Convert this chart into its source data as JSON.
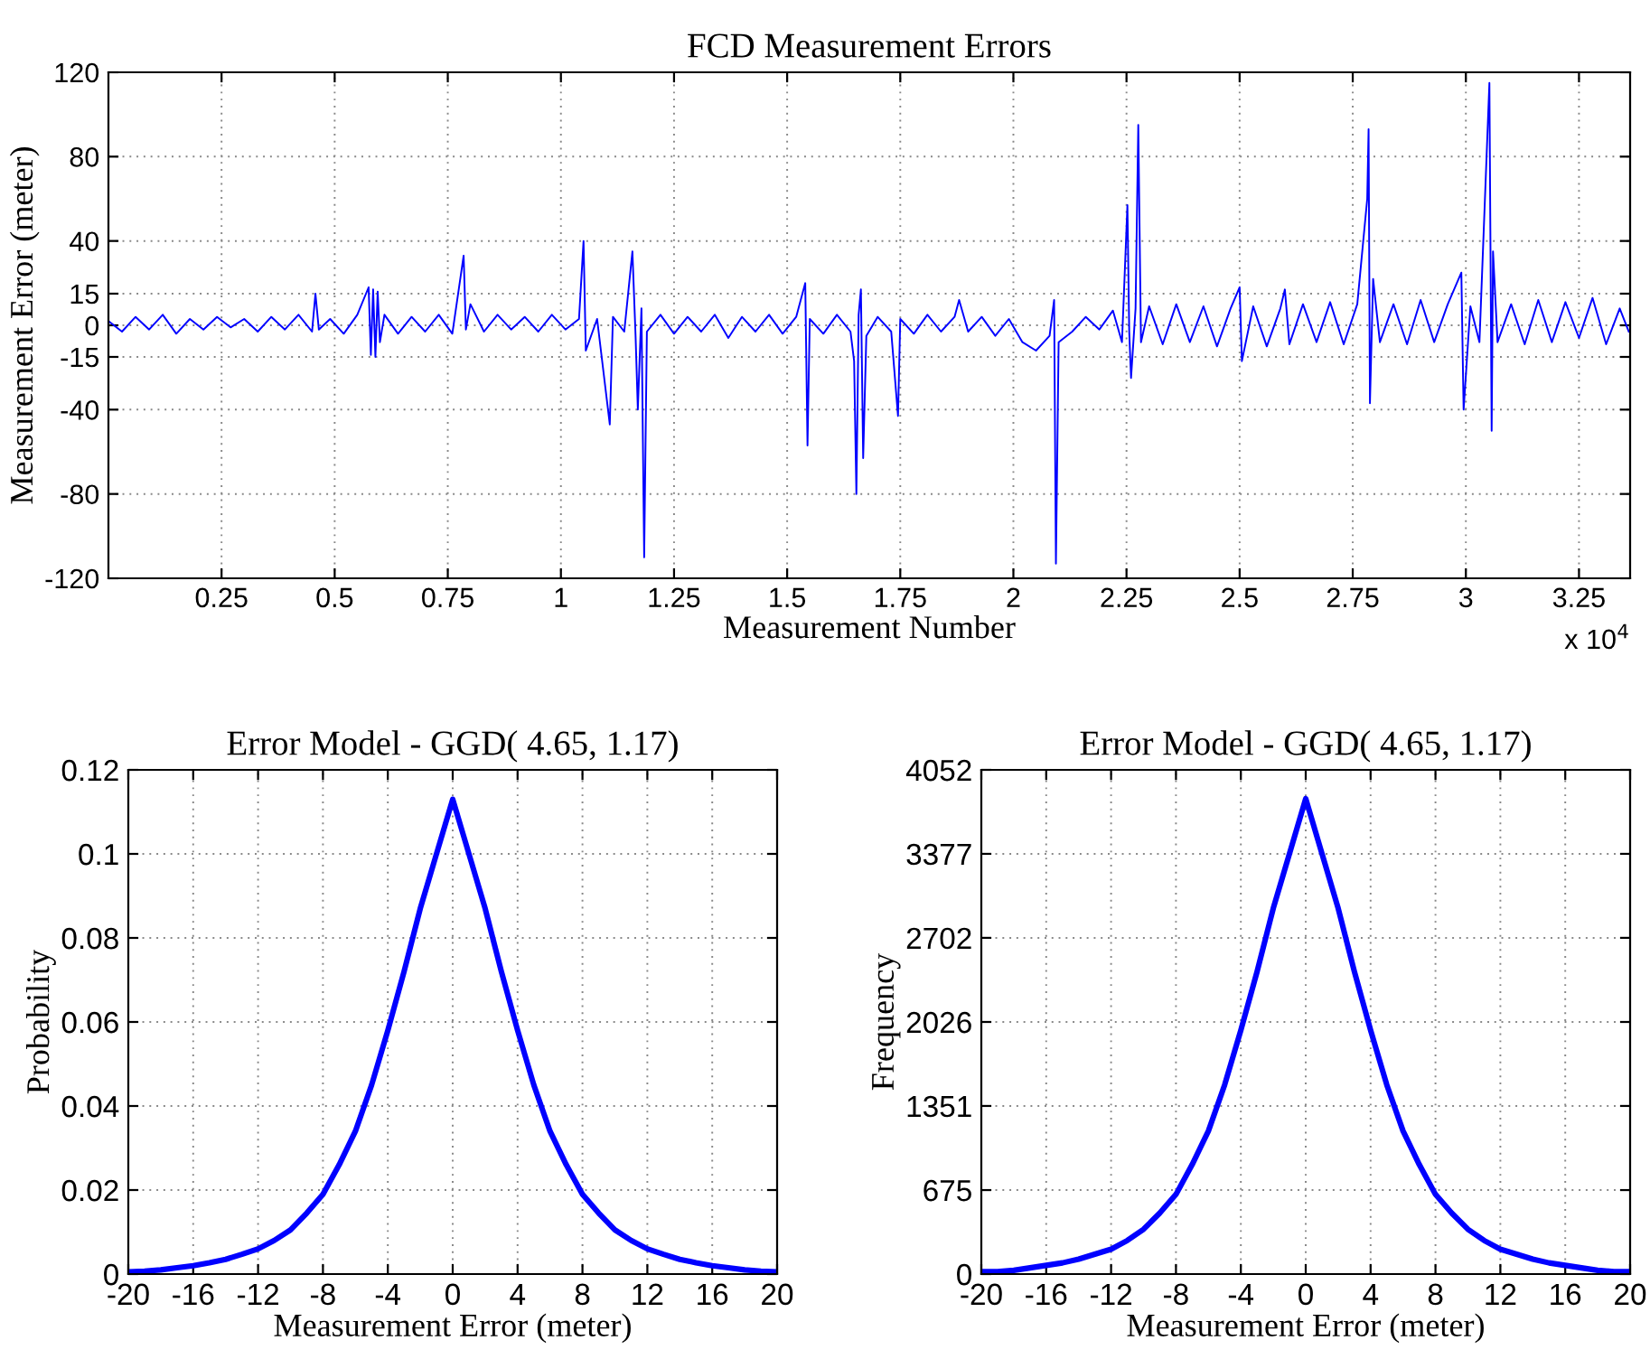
{
  "chart_data": [
    {
      "type": "line",
      "title": "FCD Measurement Errors",
      "xlabel": "Measurement Number",
      "ylabel": "Measurement Error (meter)",
      "annotations": [
        "x 10$^{4}$"
      ],
      "grid": true,
      "marker": "none",
      "line_style": "solid",
      "xlim": [
        0,
        3.363
      ],
      "xticks": [
        0.25,
        0.5,
        0.75,
        1,
        1.25,
        1.5,
        1.75,
        2,
        2.25,
        2.5,
        2.75,
        3,
        3.25
      ],
      "ylim": [
        -120,
        120
      ],
      "yticks": [
        -120,
        -80,
        -40,
        -15,
        0,
        15,
        40,
        80,
        120
      ],
      "series": [
        {
          "color": "#0000ff",
          "x": [
            0,
            0.03,
            0.06,
            0.09,
            0.12,
            0.15,
            0.18,
            0.21,
            0.24,
            0.27,
            0.3,
            0.33,
            0.36,
            0.39,
            0.42,
            0.45,
            0.4575,
            0.465,
            0.49,
            0.52,
            0.55,
            0.575,
            0.58,
            0.585,
            0.59,
            0.595,
            0.6,
            0.61,
            0.64,
            0.67,
            0.7,
            0.73,
            0.76,
            0.785,
            0.79,
            0.8,
            0.83,
            0.86,
            0.89,
            0.92,
            0.95,
            0.98,
            1.01,
            1.04,
            1.05,
            1.055,
            1.08,
            1.108,
            1.115,
            1.14,
            1.158,
            1.165,
            1.17,
            1.178,
            1.184,
            1.19,
            1.22,
            1.25,
            1.28,
            1.31,
            1.34,
            1.37,
            1.4,
            1.43,
            1.46,
            1.49,
            1.52,
            1.54,
            1.545,
            1.55,
            1.58,
            1.61,
            1.64,
            1.648,
            1.653,
            1.658,
            1.663,
            1.668,
            1.675,
            1.7,
            1.73,
            1.745,
            1.75,
            1.78,
            1.81,
            1.84,
            1.87,
            1.88,
            1.9,
            1.93,
            1.96,
            1.99,
            2.02,
            2.05,
            2.08,
            2.09,
            2.094,
            2.1,
            2.13,
            2.16,
            2.19,
            2.22,
            2.24,
            2.252,
            2.256,
            2.26,
            2.27,
            2.276,
            2.282,
            2.3,
            2.33,
            2.36,
            2.39,
            2.42,
            2.45,
            2.48,
            2.5,
            2.505,
            2.53,
            2.56,
            2.59,
            2.6,
            2.61,
            2.64,
            2.67,
            2.7,
            2.73,
            2.76,
            2.782,
            2.785,
            2.788,
            2.795,
            2.81,
            2.84,
            2.87,
            2.9,
            2.93,
            2.96,
            2.99,
            2.995,
            3.01,
            3.03,
            3.052,
            3.057,
            3.06,
            3.07,
            3.1,
            3.13,
            3.16,
            3.19,
            3.22,
            3.25,
            3.28,
            3.31,
            3.34,
            3.36
          ],
          "values": [
            2,
            -3,
            4,
            -2,
            5,
            -4,
            3,
            -2,
            4,
            -1,
            3,
            -3,
            4,
            -2,
            5,
            -3,
            15,
            -2,
            3,
            -4,
            5,
            18,
            -14,
            17,
            -15,
            16,
            -8,
            5,
            -4,
            4,
            -3,
            5,
            -4,
            33,
            -2,
            10,
            -3,
            5,
            -2,
            4,
            -3,
            5,
            -2,
            3,
            40,
            -12,
            3,
            -47,
            4,
            -3,
            35,
            -5,
            -40,
            8,
            -110,
            -3,
            5,
            -4,
            4,
            -3,
            5,
            -6,
            4,
            -3,
            5,
            -4,
            4,
            20,
            -57,
            3,
            -4,
            5,
            -3,
            -17,
            -80,
            5,
            17,
            -63,
            -5,
            4,
            -3,
            -43,
            3,
            -4,
            5,
            -3,
            4,
            12,
            -3,
            4,
            -5,
            3,
            -8,
            -12,
            -5,
            12,
            -113,
            -8,
            -3,
            4,
            -2,
            7,
            -8,
            57,
            -3,
            -25,
            8,
            95,
            -8,
            9,
            -9,
            10,
            -8,
            9,
            -10,
            8,
            18,
            -17,
            9,
            -10,
            8,
            17,
            -9,
            10,
            -8,
            11,
            -9,
            10,
            60,
            93,
            -37,
            22,
            -8,
            10,
            -9,
            12,
            -8,
            10,
            25,
            -40,
            9,
            -8,
            115,
            -50,
            35,
            -8,
            10,
            -9,
            12,
            -8,
            11,
            -6,
            13,
            -9,
            8,
            -3
          ]
        }
      ]
    },
    {
      "type": "line",
      "title": "Error Model - GGD( 4.65, 1.17)",
      "xlabel": "Measurement Error (meter)",
      "ylabel": "Probability",
      "grid": true,
      "marker": "none",
      "line_style": "solid",
      "xlim": [
        -20,
        20
      ],
      "xticks": [
        -20,
        -16,
        -12,
        -8,
        -4,
        0,
        4,
        8,
        12,
        16,
        20
      ],
      "ylim": [
        0,
        0.12
      ],
      "yticks": [
        0,
        0.02,
        0.04,
        0.06,
        0.08,
        0.1,
        0.12
      ],
      "series": [
        {
          "color": "#0000ff",
          "x": [
            -20,
            -19,
            -18,
            -17,
            -16,
            -15,
            -14,
            -13,
            -12,
            -11,
            -10,
            -9,
            -8,
            -7,
            -6,
            -5,
            -4,
            -3,
            -2,
            -1,
            0,
            1,
            2,
            3,
            4,
            5,
            6,
            7,
            8,
            9,
            10,
            11,
            12,
            13,
            14,
            15,
            16,
            17,
            18,
            19,
            20
          ],
          "values": [
            0.0005,
            0.0007,
            0.001,
            0.0015,
            0.002,
            0.0027,
            0.0035,
            0.0047,
            0.006,
            0.008,
            0.0105,
            0.0145,
            0.019,
            0.026,
            0.034,
            0.045,
            0.058,
            0.072,
            0.087,
            0.1,
            0.113,
            0.1,
            0.087,
            0.072,
            0.058,
            0.045,
            0.034,
            0.026,
            0.019,
            0.0145,
            0.0105,
            0.008,
            0.006,
            0.0047,
            0.0035,
            0.0027,
            0.002,
            0.0015,
            0.001,
            0.0007,
            0.0005
          ]
        }
      ]
    },
    {
      "type": "line",
      "title": "Error Model - GGD( 4.65, 1.17)",
      "xlabel": "Measurement Error (meter)",
      "ylabel": "Frequency",
      "grid": true,
      "marker": "none",
      "line_style": "solid",
      "xlim": [
        -20,
        20
      ],
      "xticks": [
        -20,
        -16,
        -12,
        -8,
        -4,
        0,
        4,
        8,
        12,
        16,
        20
      ],
      "ylim": [
        0,
        4052
      ],
      "yticks": [
        0,
        675,
        1351,
        2026,
        2702,
        3377,
        4052
      ],
      "series": [
        {
          "color": "#0000ff",
          "x": [
            -20,
            -19,
            -18,
            -17,
            -16,
            -15,
            -14,
            -13,
            -12,
            -11,
            -10,
            -9,
            -8,
            -7,
            -6,
            -5,
            -4,
            -3,
            -2,
            -1,
            0,
            1,
            2,
            3,
            4,
            5,
            6,
            7,
            8,
            9,
            10,
            11,
            12,
            13,
            14,
            15,
            16,
            17,
            18,
            19,
            20
          ],
          "values": [
            20,
            20,
            30,
            50,
            70,
            90,
            120,
            160,
            200,
            270,
            360,
            490,
            640,
            880,
            1150,
            1520,
            1960,
            2430,
            2940,
            3380,
            3820,
            3380,
            2940,
            2430,
            1960,
            1520,
            1150,
            880,
            640,
            490,
            360,
            270,
            200,
            160,
            120,
            90,
            70,
            50,
            30,
            20,
            20
          ]
        }
      ]
    }
  ]
}
